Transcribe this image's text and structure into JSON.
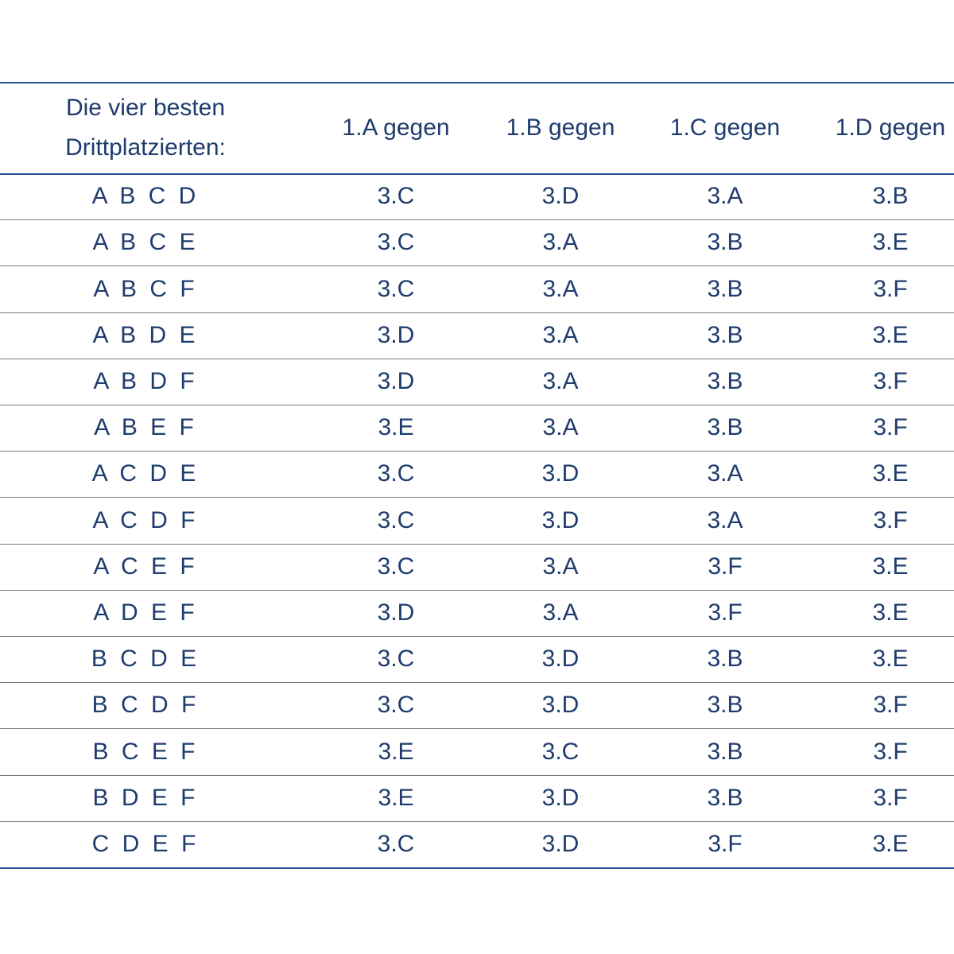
{
  "table": {
    "header": [
      "Die vier besten Drittplatzierten:",
      "1.A gegen",
      "1.B gegen",
      "1.C gegen",
      "1.D gegen"
    ],
    "rows": [
      [
        "A B C D",
        "3.C",
        "3.D",
        "3.A",
        "3.B"
      ],
      [
        "A B C E",
        "3.C",
        "3.A",
        "3.B",
        "3.E"
      ],
      [
        "A B C F",
        "3.C",
        "3.A",
        "3.B",
        "3.F"
      ],
      [
        "A B D E",
        "3.D",
        "3.A",
        "3.B",
        "3.E"
      ],
      [
        "A B D F",
        "3.D",
        "3.A",
        "3.B",
        "3.F"
      ],
      [
        "A B E F",
        "3.E",
        "3.A",
        "3.B",
        "3.F"
      ],
      [
        "A C D E",
        "3.C",
        "3.D",
        "3.A",
        "3.E"
      ],
      [
        "A C D F",
        "3.C",
        "3.D",
        "3.A",
        "3.F"
      ],
      [
        "A C E F",
        "3.C",
        "3.A",
        "3.F",
        "3.E"
      ],
      [
        "A D E F",
        "3.D",
        "3.A",
        "3.F",
        "3.E"
      ],
      [
        "B C D E",
        "3.C",
        "3.D",
        "3.B",
        "3.E"
      ],
      [
        "B C D F",
        "3.C",
        "3.D",
        "3.B",
        "3.F"
      ],
      [
        "B C E F",
        "3.E",
        "3.C",
        "3.B",
        "3.F"
      ],
      [
        "B D E F",
        "3.E",
        "3.D",
        "3.B",
        "3.F"
      ],
      [
        "C D E F",
        "3.C",
        "3.D",
        "3.F",
        "3.E"
      ]
    ]
  }
}
